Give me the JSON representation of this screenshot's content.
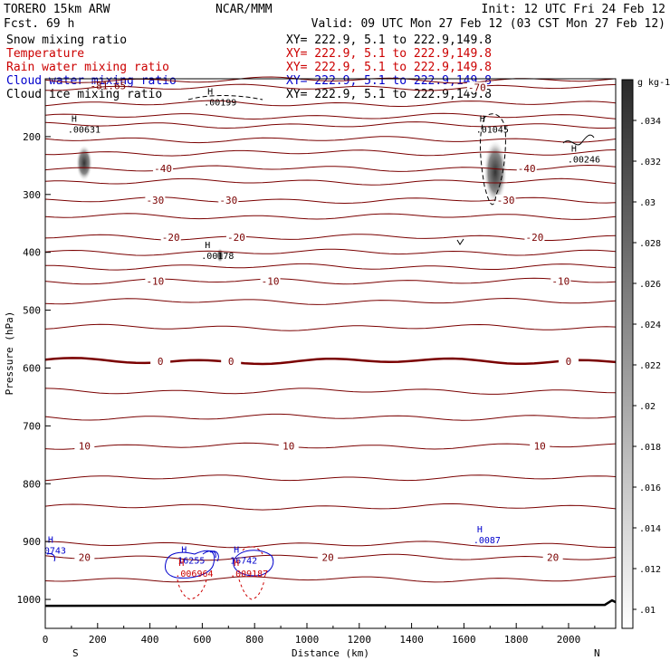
{
  "header": {
    "model": "TORERO  15km ARW",
    "forecast": "Fcst.   69 h",
    "org": "NCAR/MMM",
    "init": "Init: 12 UTC Fri 24 Feb 12",
    "valid": "Valid: 09 UTC Mon 27 Feb 12 (03 CST Mon 27 Feb 12)"
  },
  "legend": [
    {
      "label": "Snow mixing ratio",
      "xy": "XY= 222.9,  5.1 to 222.9,149.8",
      "color": "#000000"
    },
    {
      "label": "Temperature",
      "xy": "XY= 222.9,  5.1 to 222.9,149.8",
      "color": "#cc0000"
    },
    {
      "label": "Rain water mixing ratio",
      "xy": "XY= 222.9,  5.1 to 222.9,149.8",
      "color": "#cc0000"
    },
    {
      "label": "Cloud water mixing ratio",
      "xy": "XY= 222.9,  5.1 to 222.9,149.8",
      "color": "#0000cc"
    },
    {
      "label": "Cloud ice mixing ratio",
      "xy": "XY= 222.9,  5.1 to 222.9,149.8",
      "color": "#000000"
    }
  ],
  "colors": {
    "temperature": "#7a0000",
    "cloud_water": "#0000cc",
    "rain": "#cc0000",
    "ice": "#000000"
  },
  "chart_data": {
    "type": "cross-section contour",
    "xlabel": "Distance (km)",
    "ylabel": "Pressure (hPa)",
    "xlim": [
      0,
      2180
    ],
    "ylim": [
      1050,
      100
    ],
    "x_ticks": [
      0,
      200,
      400,
      600,
      800,
      1000,
      1200,
      1400,
      1600,
      1800,
      2000
    ],
    "y_ticks": [
      200,
      300,
      400,
      500,
      600,
      700,
      800,
      900,
      1000
    ],
    "end_labels": {
      "left": "S",
      "right": "N"
    },
    "temperature_isotherms": [
      {
        "p": 102,
        "label": "",
        "labels_x": []
      },
      {
        "p": 115,
        "label": "-70",
        "labels_x": [
          1650
        ]
      },
      {
        "p": 143,
        "label": "",
        "labels_x": []
      },
      {
        "p": 165,
        "label": "",
        "labels_x": []
      },
      {
        "p": 180,
        "label": "",
        "labels_x": []
      },
      {
        "p": 205,
        "label": "",
        "labels_x": []
      },
      {
        "p": 228,
        "label": "",
        "labels_x": []
      },
      {
        "p": 255,
        "label": "-40",
        "labels_x": [
          450,
          1840
        ]
      },
      {
        "p": 278,
        "label": "",
        "labels_x": []
      },
      {
        "p": 310,
        "label": "-30",
        "labels_x": [
          420,
          700,
          1760
        ]
      },
      {
        "p": 338,
        "label": "",
        "labels_x": []
      },
      {
        "p": 374,
        "label": "-20",
        "labels_x": [
          480,
          730,
          1870
        ]
      },
      {
        "p": 400,
        "label": "",
        "labels_x": []
      },
      {
        "p": 425,
        "label": "",
        "labels_x": []
      },
      {
        "p": 450,
        "label": "-10",
        "labels_x": [
          420,
          860,
          1970
        ]
      },
      {
        "p": 485,
        "label": "",
        "labels_x": []
      },
      {
        "p": 530,
        "label": "",
        "labels_x": []
      },
      {
        "p": 588,
        "label": "0",
        "labels_x": [
          440,
          710,
          2000
        ],
        "bold": true
      },
      {
        "p": 640,
        "label": "",
        "labels_x": []
      },
      {
        "p": 685,
        "label": "",
        "labels_x": []
      },
      {
        "p": 735,
        "label": "10",
        "labels_x": [
          150,
          930,
          1890
        ]
      },
      {
        "p": 790,
        "label": "",
        "labels_x": []
      },
      {
        "p": 840,
        "label": "",
        "labels_x": []
      },
      {
        "p": 905,
        "label": "",
        "labels_x": []
      },
      {
        "p": 927,
        "label": "20",
        "labels_x": [
          150,
          1080,
          1940
        ]
      },
      {
        "p": 965,
        "label": "",
        "labels_x": []
      }
    ],
    "temperature_top_label": {
      "text": "-81.65",
      "x": 240,
      "p": 118
    },
    "ground_p": 1011,
    "maxima": [
      {
        "label": "H",
        "value": ".00199",
        "x": 620,
        "p": 143,
        "color": "#000000"
      },
      {
        "label": "H",
        "value": ".00631",
        "x": 100,
        "p": 190,
        "color": "#000000"
      },
      {
        "label": "H",
        "value": ".01045",
        "x": 1660,
        "p": 190,
        "color": "#000000"
      },
      {
        "label": "H",
        "value": ".00246",
        "x": 2010,
        "p": 242,
        "color": "#000000"
      },
      {
        "label": "H",
        "value": ".00178",
        "x": 610,
        "p": 408,
        "color": "#000000"
      },
      {
        "label": "H",
        "value": ".0087",
        "x": 1650,
        "p": 900,
        "color": "#0000cc"
      },
      {
        "label": "H",
        "value": "0743",
        "x": 10,
        "p": 918,
        "color": "#0000cc"
      },
      {
        "label": "H",
        "value": "16255",
        "x": 520,
        "p": 935,
        "color": "#0000cc"
      },
      {
        "label": "H",
        "value": ".006964",
        "x": 510,
        "p": 958,
        "color": "#cc0000"
      },
      {
        "label": "H",
        "value": "16742",
        "x": 720,
        "p": 935,
        "color": "#0000cc"
      },
      {
        "label": "H",
        "value": ".009187",
        "x": 720,
        "p": 958,
        "color": "#cc0000"
      }
    ],
    "colorbar": {
      "unit": "g kg-1",
      "ticks": [
        ".034",
        ".032",
        ".03",
        ".028",
        ".026",
        ".024",
        ".022",
        ".02",
        ".018",
        ".016",
        ".014",
        ".012",
        ".01"
      ]
    }
  }
}
